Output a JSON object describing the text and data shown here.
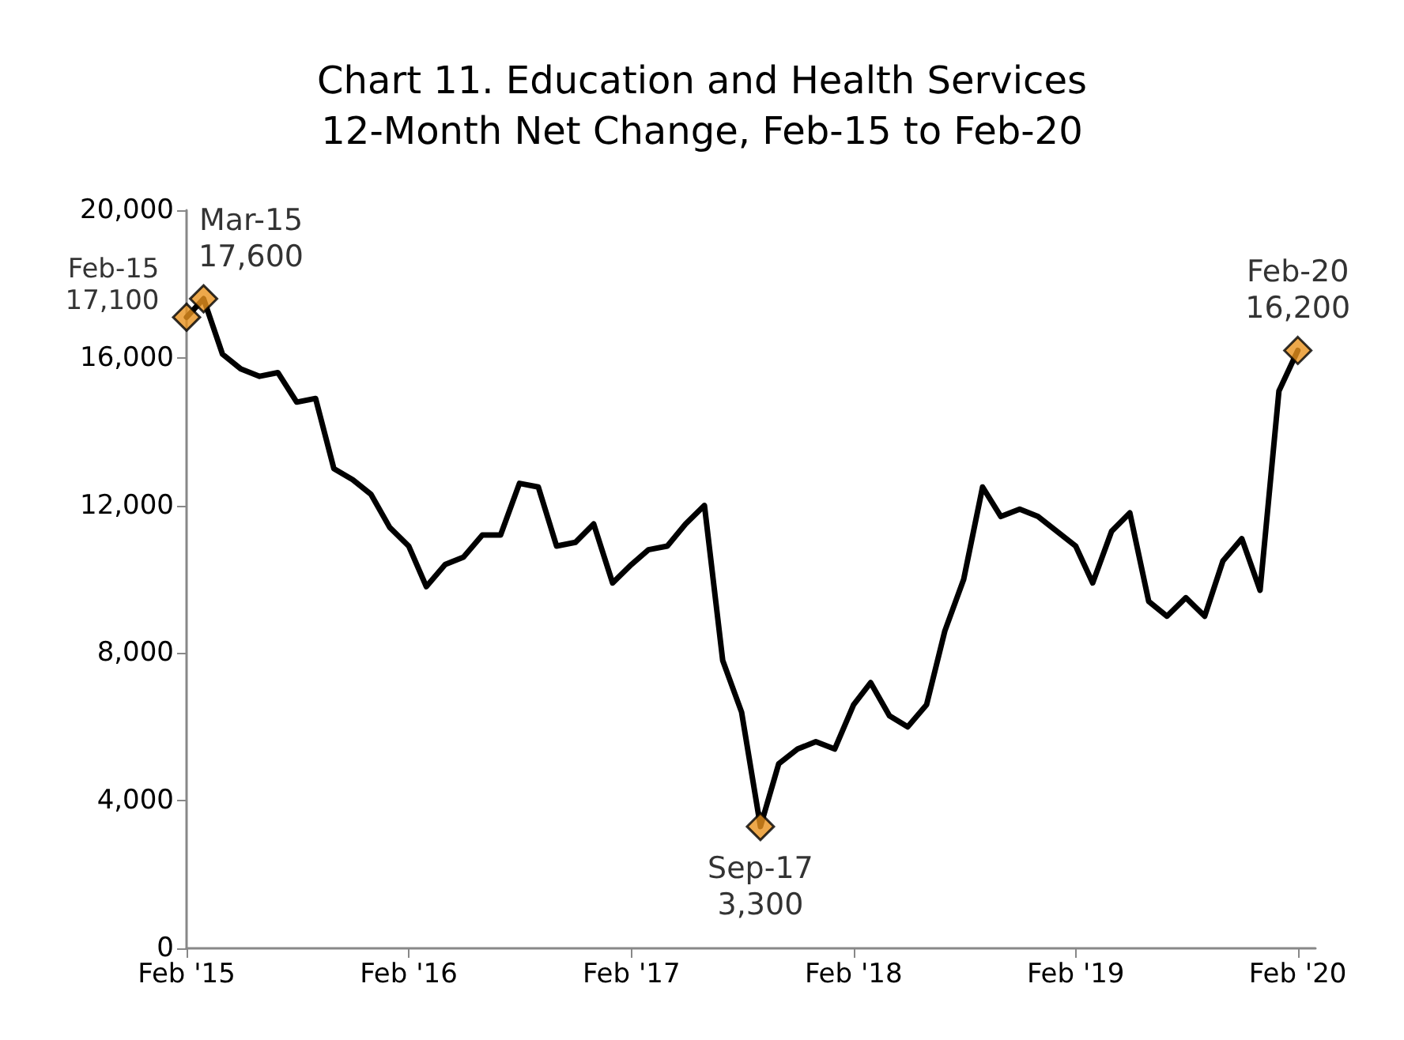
{
  "chart_data": {
    "type": "line",
    "title": "Chart 11. Education and Health Services\n12-Month Net Change, Feb-15 to Feb-20",
    "x": [
      "2015-02",
      "2015-03",
      "2015-04",
      "2015-05",
      "2015-06",
      "2015-07",
      "2015-08",
      "2015-09",
      "2015-10",
      "2015-11",
      "2015-12",
      "2016-01",
      "2016-02",
      "2016-03",
      "2016-04",
      "2016-05",
      "2016-06",
      "2016-07",
      "2016-08",
      "2016-09",
      "2016-10",
      "2016-11",
      "2016-12",
      "2017-01",
      "2017-02",
      "2017-03",
      "2017-04",
      "2017-05",
      "2017-06",
      "2017-07",
      "2017-08",
      "2017-09",
      "2017-10",
      "2017-11",
      "2017-12",
      "2018-01",
      "2018-02",
      "2018-03",
      "2018-04",
      "2018-05",
      "2018-06",
      "2018-07",
      "2018-08",
      "2018-09",
      "2018-10",
      "2018-11",
      "2018-12",
      "2019-01",
      "2019-02",
      "2019-03",
      "2019-04",
      "2019-05",
      "2019-06",
      "2019-07",
      "2019-08",
      "2019-09",
      "2019-10",
      "2019-11",
      "2019-12",
      "2020-01",
      "2020-02"
    ],
    "series": [
      {
        "color": "#000000",
        "marker": "none",
        "values": [
          17100,
          17600,
          16100,
          15700,
          15500,
          15600,
          14800,
          14900,
          13000,
          12700,
          12300,
          11400,
          10900,
          9800,
          10400,
          10600,
          11200,
          11200,
          12600,
          12500,
          10900,
          11000,
          11500,
          9900,
          10400,
          10800,
          10900,
          11500,
          12000,
          7800,
          6400,
          3300,
          5000,
          5400,
          5600,
          5400,
          6600,
          7200,
          6300,
          6000,
          6600,
          8600,
          10000,
          12500,
          11700,
          11900,
          11700,
          11300,
          10900,
          9900,
          11300,
          11800,
          9400,
          9000,
          9500,
          9000,
          10500,
          11100,
          9700,
          15100,
          16200
        ]
      },
      {
        "type": "scatter",
        "color": "#e8921e",
        "marker": "diamond",
        "x": [
          "2015-02",
          "2015-03",
          "2017-09",
          "2020-02"
        ],
        "values": [
          17100,
          17600,
          3300,
          16200
        ],
        "value_labels": [
          "Feb-15\n17,100",
          "Mar-15\n17,600",
          "Sep-17\n3,300",
          "Feb-20\n16,200"
        ]
      }
    ],
    "xlim": [
      "2015-02",
      "2020-03"
    ],
    "xticks": [
      {
        "value": "2015-02",
        "label": "Feb '15"
      },
      {
        "value": "2016-02",
        "label": "Feb '16"
      },
      {
        "value": "2017-02",
        "label": "Feb '17"
      },
      {
        "value": "2018-02",
        "label": "Feb '18"
      },
      {
        "value": "2019-02",
        "label": "Feb '19"
      },
      {
        "value": "2020-02",
        "label": "Feb '20"
      }
    ],
    "ylim": [
      0,
      20000
    ],
    "yticks": [
      0,
      {
        "value": 4000,
        "label": "4,000"
      },
      {
        "value": 8000,
        "label": "8,000"
      },
      {
        "value": 12000,
        "label": "12,000"
      },
      {
        "value": 16000,
        "label": "16,000"
      },
      {
        "value": 20000,
        "label": "20,000"
      }
    ],
    "grid": false
  }
}
